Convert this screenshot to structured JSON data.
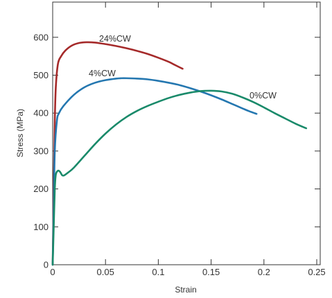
{
  "chart_data": {
    "type": "line",
    "xlabel": "Strain",
    "ylabel": "Stress (MPa)",
    "xlim": [
      0,
      0.25
    ],
    "ylim": [
      0,
      700
    ],
    "x_ticks": [
      "0",
      "0.05",
      "0.1",
      "0.15",
      "0.2",
      "0.25"
    ],
    "x_tick_values": [
      0,
      0.05,
      0.1,
      0.15,
      0.2,
      0.25
    ],
    "y_ticks": [
      "0",
      "100",
      "200",
      "300",
      "400",
      "500",
      "600"
    ],
    "y_tick_values": [
      0,
      100,
      200,
      300,
      400,
      500,
      600
    ],
    "grid": false,
    "series": [
      {
        "name": "24%CW",
        "color": "#a52a2a",
        "points": [
          [
            0,
            0
          ],
          [
            0.001,
            200
          ],
          [
            0.002,
            380
          ],
          [
            0.003,
            470
          ],
          [
            0.005,
            530
          ],
          [
            0.008,
            550
          ],
          [
            0.012,
            565
          ],
          [
            0.018,
            578
          ],
          [
            0.025,
            585
          ],
          [
            0.032,
            587
          ],
          [
            0.04,
            586
          ],
          [
            0.05,
            582
          ],
          [
            0.06,
            577
          ],
          [
            0.07,
            571
          ],
          [
            0.08,
            564
          ],
          [
            0.09,
            556
          ],
          [
            0.1,
            546
          ],
          [
            0.11,
            535
          ],
          [
            0.115,
            528
          ],
          [
            0.12,
            521
          ],
          [
            0.123,
            517
          ]
        ]
      },
      {
        "name": "4%CW",
        "color": "#2477b0",
        "points": [
          [
            0,
            0
          ],
          [
            0.001,
            150
          ],
          [
            0.002,
            300
          ],
          [
            0.004,
            380
          ],
          [
            0.006,
            400
          ],
          [
            0.01,
            418
          ],
          [
            0.02,
            448
          ],
          [
            0.03,
            468
          ],
          [
            0.04,
            480
          ],
          [
            0.05,
            487
          ],
          [
            0.06,
            491
          ],
          [
            0.065,
            492
          ],
          [
            0.07,
            492
          ],
          [
            0.08,
            491
          ],
          [
            0.09,
            489
          ],
          [
            0.1,
            485
          ],
          [
            0.11,
            480
          ],
          [
            0.12,
            474
          ],
          [
            0.13,
            466
          ],
          [
            0.14,
            457
          ],
          [
            0.15,
            447
          ],
          [
            0.16,
            436
          ],
          [
            0.17,
            424
          ],
          [
            0.18,
            412
          ],
          [
            0.186,
            405
          ],
          [
            0.193,
            398
          ]
        ]
      },
      {
        "name": "0%CW",
        "color": "#1a8a6a",
        "points": [
          [
            0,
            0
          ],
          [
            0.001,
            100
          ],
          [
            0.002,
            200
          ],
          [
            0.003,
            238
          ],
          [
            0.005,
            248
          ],
          [
            0.007,
            245
          ],
          [
            0.009,
            236
          ],
          [
            0.011,
            236
          ],
          [
            0.015,
            244
          ],
          [
            0.02,
            256
          ],
          [
            0.03,
            287
          ],
          [
            0.04,
            318
          ],
          [
            0.05,
            346
          ],
          [
            0.06,
            370
          ],
          [
            0.07,
            390
          ],
          [
            0.08,
            406
          ],
          [
            0.09,
            419
          ],
          [
            0.1,
            430
          ],
          [
            0.11,
            440
          ],
          [
            0.12,
            448
          ],
          [
            0.13,
            454
          ],
          [
            0.14,
            458
          ],
          [
            0.15,
            459
          ],
          [
            0.16,
            457
          ],
          [
            0.17,
            451
          ],
          [
            0.18,
            441
          ],
          [
            0.19,
            429
          ],
          [
            0.2,
            415
          ],
          [
            0.21,
            400
          ],
          [
            0.22,
            386
          ],
          [
            0.23,
            372
          ],
          [
            0.24,
            360
          ]
        ]
      }
    ]
  }
}
